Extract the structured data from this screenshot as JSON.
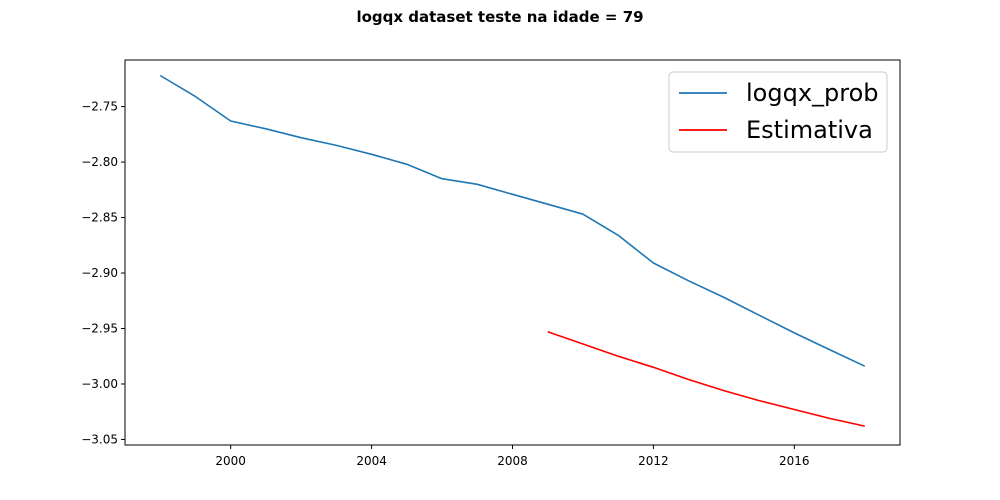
{
  "chart_data": {
    "type": "line",
    "title": "logqx dataset teste na idade = 79",
    "xlabel": "",
    "ylabel": "",
    "xlim": [
      1997,
      2019
    ],
    "ylim": [
      -3.055,
      -2.708
    ],
    "x_ticks": [
      2000,
      2004,
      2008,
      2012,
      2016
    ],
    "x_tick_labels": [
      "2000",
      "2004",
      "2008",
      "2012",
      "2016"
    ],
    "y_ticks": [
      -2.75,
      -2.8,
      -2.85,
      -2.9,
      -2.95,
      -3.0,
      -3.05
    ],
    "y_tick_labels": [
      "−2.75",
      "−2.80",
      "−2.85",
      "−2.90",
      "−2.95",
      "−3.00",
      "−3.05"
    ],
    "grid": false,
    "legend_position": "top-right",
    "series": [
      {
        "name": "logqx_prob",
        "color": "#1f77b4",
        "x": [
          1998,
          1999,
          2000,
          2001,
          2002,
          2003,
          2004,
          2005,
          2006,
          2007,
          2008,
          2009,
          2010,
          2011,
          2012,
          2013,
          2014,
          2015,
          2016,
          2017,
          2018
        ],
        "values": [
          -2.722,
          -2.741,
          -2.763,
          -2.77,
          -2.778,
          -2.785,
          -2.793,
          -2.802,
          -2.815,
          -2.82,
          -2.829,
          -2.838,
          -2.847,
          -2.866,
          -2.891,
          -2.907,
          -2.922,
          -2.938,
          -2.954,
          -2.969,
          -2.984
        ]
      },
      {
        "name": "Estimativa",
        "color": "#ff0000",
        "x": [
          2009,
          2010,
          2011,
          2012,
          2013,
          2014,
          2015,
          2016,
          2017,
          2018
        ],
        "values": [
          -2.953,
          -2.964,
          -2.975,
          -2.985,
          -2.996,
          -3.006,
          -3.015,
          -3.023,
          -3.031,
          -3.038
        ]
      }
    ]
  }
}
